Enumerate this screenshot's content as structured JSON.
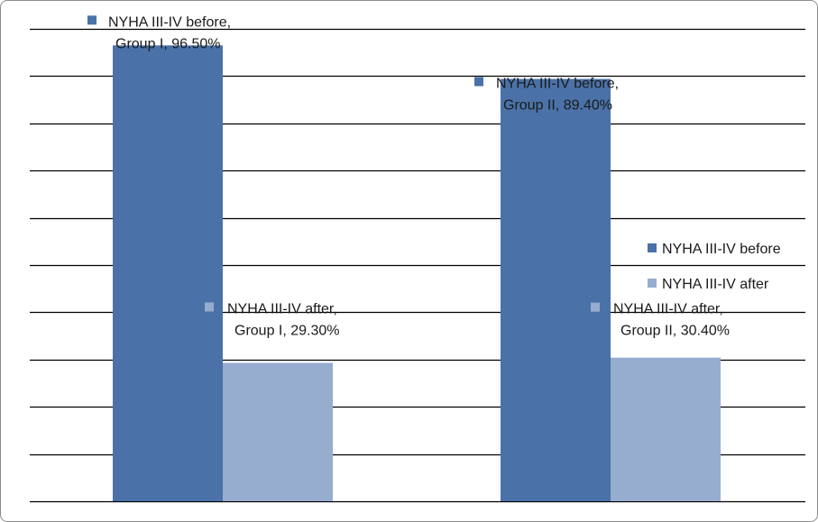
{
  "chart_data": {
    "type": "bar",
    "categories": [
      "Group I",
      "Group II"
    ],
    "series": [
      {
        "name": "NYHA III-IV before",
        "values": [
          96.5,
          89.4
        ],
        "color": "#4a72a8"
      },
      {
        "name": "NYHA III-IV after",
        "values": [
          29.3,
          30.4
        ],
        "color": "#97adcf"
      }
    ],
    "ylim": [
      0,
      100
    ],
    "grid": true,
    "legend_position": "right",
    "data_labels": [
      [
        "NYHA III-IV before,",
        "Group I, 96.50%"
      ],
      [
        "NYHA III-IV before,",
        "Group II, 89.40%"
      ],
      [
        "NYHA III-IV after,",
        "Group I, 29.30%"
      ],
      [
        "NYHA III-IV after,",
        "Group II, 30.40%"
      ]
    ]
  }
}
